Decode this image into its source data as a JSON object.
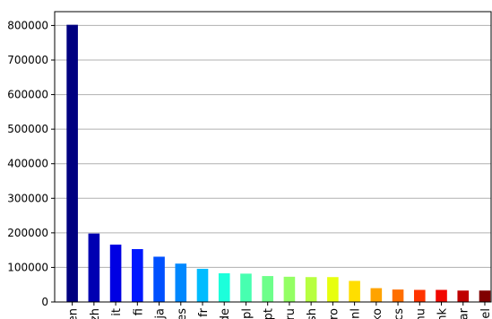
{
  "chart_data": {
    "type": "bar",
    "categories": [
      "en",
      "zh",
      "it",
      "fi",
      "ja",
      "es",
      "fr",
      "de",
      "pl",
      "pt",
      "ru",
      "sh",
      "ro",
      "nl",
      "ko",
      "cs",
      "hu",
      "nk",
      "ar",
      "el"
    ],
    "values": [
      802000,
      198000,
      166000,
      153000,
      131000,
      111000,
      96000,
      83000,
      82000,
      75000,
      73000,
      72000,
      72000,
      61000,
      40000,
      36000,
      35000,
      35000,
      33000,
      33000
    ],
    "colors": [
      "#000080",
      "#0000b2",
      "#0000e3",
      "#0018ff",
      "#0050ff",
      "#0088ff",
      "#00bcff",
      "#1cffdb",
      "#47ffb0",
      "#6dff8a",
      "#93ff64",
      "#b7ff40",
      "#e7ff0f",
      "#ffde00",
      "#ffa300",
      "#ff6e00",
      "#ff3400",
      "#f10800",
      "#bf0000",
      "#800000"
    ],
    "title": "",
    "xlabel": "",
    "ylabel": "",
    "ylim": [
      0,
      840000
    ],
    "yticks": [
      0,
      100000,
      200000,
      300000,
      400000,
      500000,
      600000,
      700000,
      800000
    ],
    "ytick_labels": [
      "0",
      "100000",
      "200000",
      "300000",
      "400000",
      "500000",
      "600000",
      "700000",
      "800000"
    ],
    "grid": "horizontal",
    "legend": "none"
  }
}
